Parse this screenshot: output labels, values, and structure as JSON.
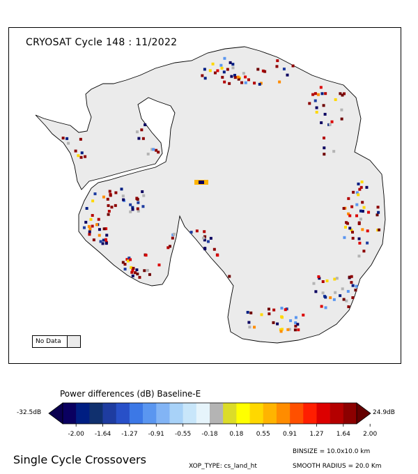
{
  "map": {
    "title": "CRYOSAT Cycle 148 : 11/2022",
    "nodata_label": "No Data",
    "land_color": "#ebebeb",
    "nodata_color": "#ebebeb"
  },
  "colorbar": {
    "title": "Power differences (dB) Baseline-E",
    "min_label": "-32.5dB",
    "max_label": "24.9dB",
    "colors": [
      "#0a0060",
      "#001e82",
      "#10306e",
      "#1e3ca0",
      "#2850c8",
      "#3c78e6",
      "#5a96f0",
      "#82b4f5",
      "#a8d2f8",
      "#c8e6fa",
      "#e6f4fb",
      "#b4b4b4",
      "#dcdc28",
      "#ffff00",
      "#ffd800",
      "#ffb400",
      "#ff8c00",
      "#ff5000",
      "#ff1e00",
      "#dc0000",
      "#b40000",
      "#8c0000"
    ],
    "end_min_color": "#0a0050",
    "end_max_color": "#640000",
    "ticks": [
      "-2.00",
      "-1.64",
      "-1.27",
      "-0.91",
      "-0.55",
      "-0.18",
      "0.18",
      "0.55",
      "0.91",
      "1.27",
      "1.64",
      "2.00"
    ]
  },
  "footer": {
    "title": "Single Cycle Crossovers",
    "xop_type": "XOP_TYPE: cs_land_ht",
    "binsize": "BINSIZE = 10.0x10.0 km",
    "smooth_radius": "SMOOTH RADIUS =  20.0 Km"
  }
}
